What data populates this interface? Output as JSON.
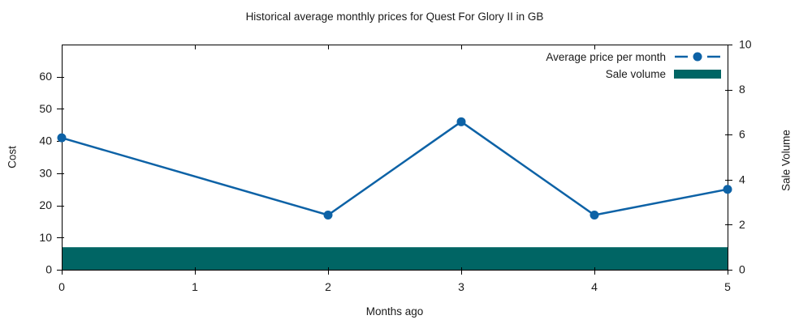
{
  "chart_data": {
    "type": "line",
    "title": "Historical average monthly prices for Quest For Glory II in GB",
    "xlabel": "Months ago",
    "ylabel_left": "Cost",
    "ylabel_right": "Sale Volume",
    "xlim": [
      0,
      5
    ],
    "ylim_left": [
      0,
      70
    ],
    "ylim_right": [
      0,
      10
    ],
    "x_ticks": [
      0,
      1,
      2,
      3,
      4,
      5
    ],
    "y_ticks_left": [
      0,
      10,
      20,
      30,
      40,
      50,
      60
    ],
    "y_ticks_right": [
      0,
      2,
      4,
      6,
      8,
      10
    ],
    "grid": false,
    "legend_position": "top-right-inside",
    "series": [
      {
        "name": "Average price per month",
        "type": "line",
        "axis": "left",
        "color": "#0d62a6",
        "marker": "circle",
        "x": [
          0,
          2,
          3,
          4,
          5
        ],
        "values": [
          41,
          17,
          46,
          17,
          25
        ]
      },
      {
        "name": "Sale volume",
        "type": "bar",
        "axis": "right",
        "color": "#006564",
        "bar_width": 1,
        "x": [
          0,
          1,
          2,
          3,
          4,
          5
        ],
        "values": [
          1,
          1,
          1,
          1,
          1,
          1
        ]
      }
    ]
  }
}
